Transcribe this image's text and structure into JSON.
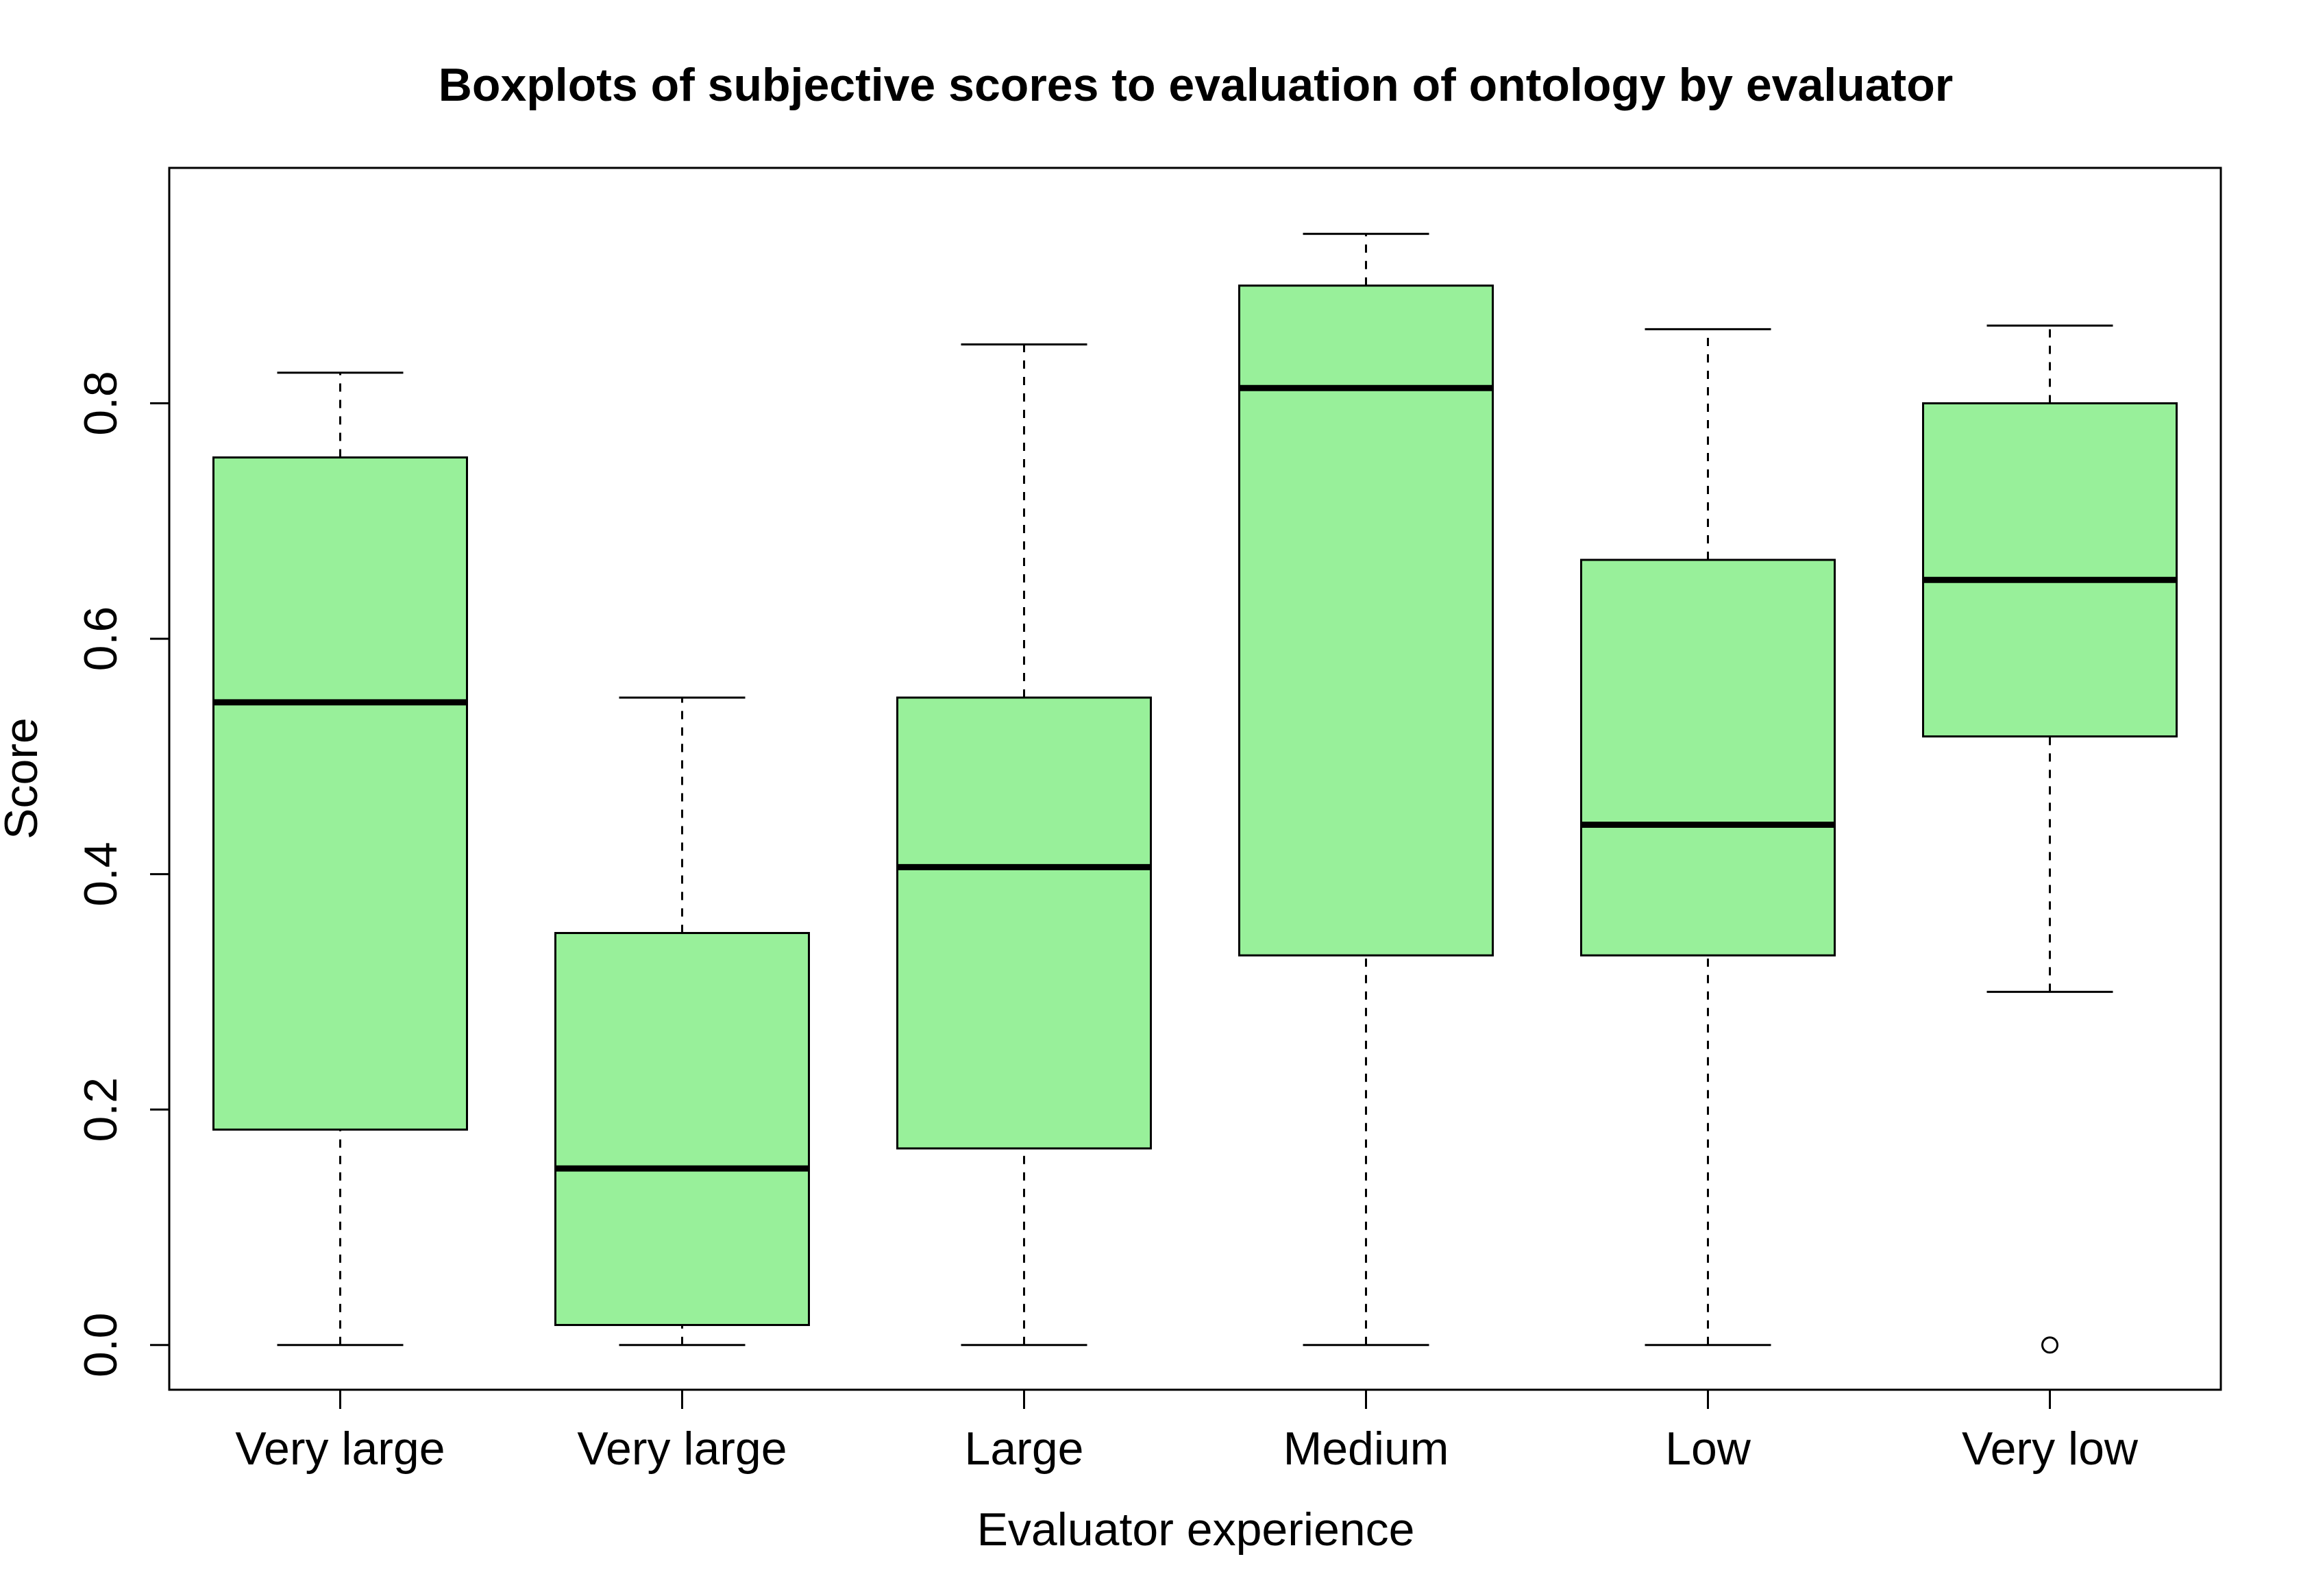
{
  "chart_data": {
    "type": "boxplot",
    "title": "Boxplots of subjective scores to evaluation of ontology by evaluator",
    "xlabel": "Evaluator experience",
    "ylabel": "Score",
    "categories": [
      "Very large",
      "Very large",
      "Large",
      "Medium",
      "Low",
      "Very low"
    ],
    "ylim": [
      -0.038,
      1.0
    ],
    "yticks": [
      0.0,
      0.2,
      0.4,
      0.6,
      0.8
    ],
    "ytick_labels": [
      "0.0",
      "0.2",
      "0.4",
      "0.6",
      "0.8"
    ],
    "grid": false,
    "box_color": "#98f09a",
    "boxes": [
      {
        "whisker_low": 0.0,
        "q1": 0.183,
        "median": 0.546,
        "q3": 0.754,
        "whisker_high": 0.826,
        "outliers": []
      },
      {
        "whisker_low": 0.0,
        "q1": 0.017,
        "median": 0.15,
        "q3": 0.35,
        "whisker_high": 0.55,
        "outliers": []
      },
      {
        "whisker_low": 0.0,
        "q1": 0.167,
        "median": 0.406,
        "q3": 0.55,
        "whisker_high": 0.85,
        "outliers": []
      },
      {
        "whisker_low": 0.0,
        "q1": 0.331,
        "median": 0.813,
        "q3": 0.9,
        "whisker_high": 0.944,
        "outliers": []
      },
      {
        "whisker_low": 0.0,
        "q1": 0.331,
        "median": 0.442,
        "q3": 0.667,
        "whisker_high": 0.863,
        "outliers": []
      },
      {
        "whisker_low": 0.3,
        "q1": 0.517,
        "median": 0.65,
        "q3": 0.8,
        "whisker_high": 0.866,
        "outliers": [
          0.0
        ]
      }
    ]
  }
}
